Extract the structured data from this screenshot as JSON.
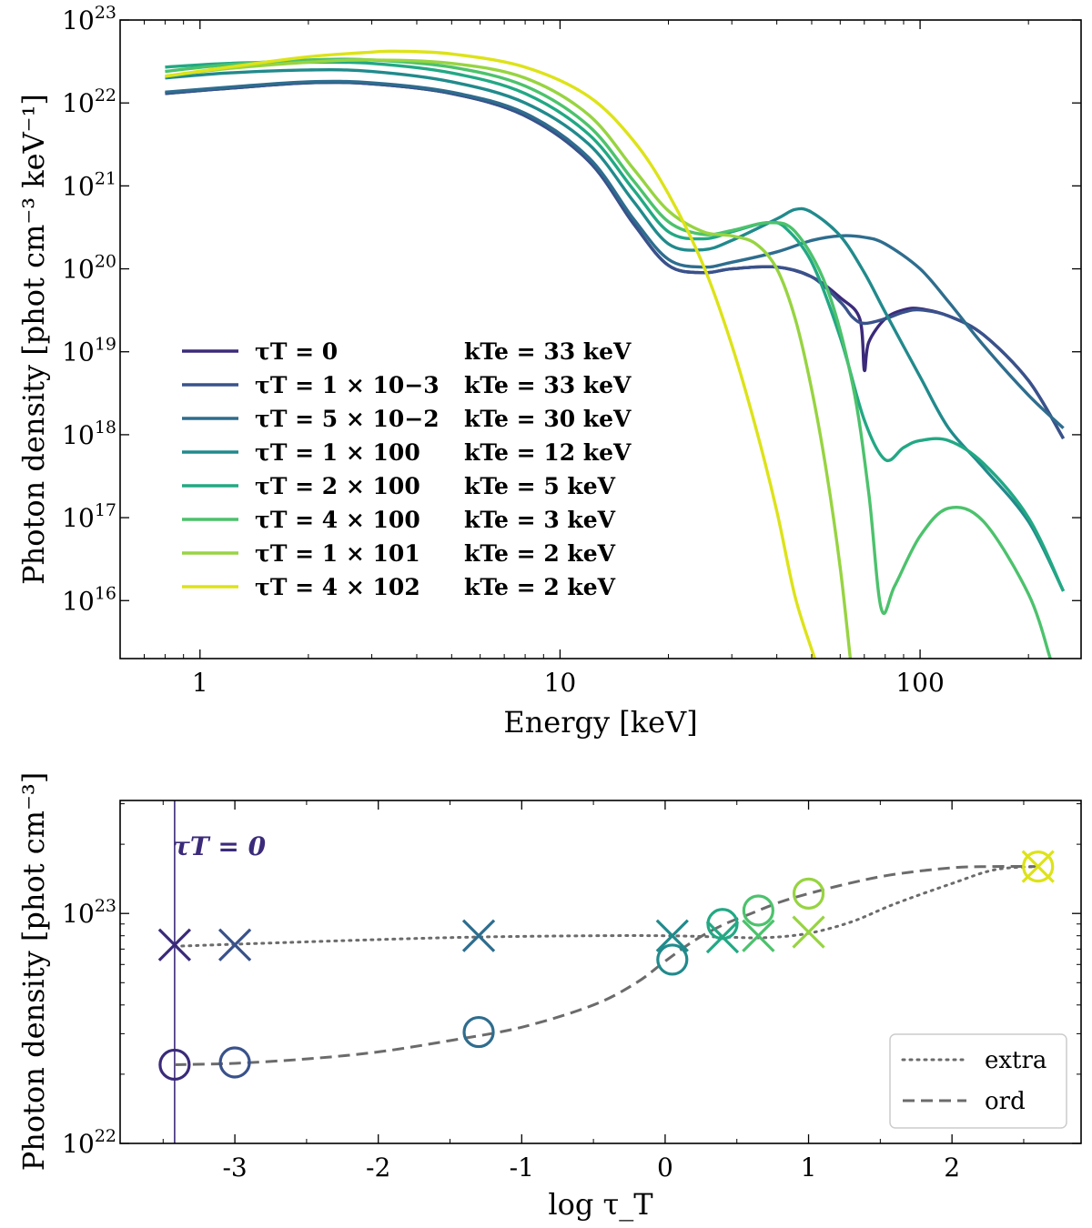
{
  "chart_data": [
    {
      "type": "line",
      "xscale": "log",
      "yscale": "log",
      "xlabel": "Energy [keV]",
      "ylabel": "Photon density [phot cm⁻³ keV⁻¹]",
      "xlim": [
        0.6,
        280
      ],
      "ylim": [
        2000000000000000.0,
        1e+23
      ],
      "xticks": [
        {
          "value": 1,
          "label": "1"
        },
        {
          "value": 10,
          "label": "10"
        },
        {
          "value": 100,
          "label": "100"
        }
      ],
      "yticks": [
        {
          "value": 1e+16,
          "base": "10",
          "exp": "16"
        },
        {
          "value": 1e+17,
          "base": "10",
          "exp": "17"
        },
        {
          "value": 1e+18,
          "base": "10",
          "exp": "18"
        },
        {
          "value": 1e+19,
          "base": "10",
          "exp": "19"
        },
        {
          "value": 1e+20,
          "base": "10",
          "exp": "20"
        },
        {
          "value": 1e+21,
          "base": "10",
          "exp": "21"
        },
        {
          "value": 1e+22,
          "base": "10",
          "exp": "22"
        },
        {
          "value": 1e+23,
          "base": "10",
          "exp": "23"
        }
      ],
      "legend_position": "lower-left",
      "series": [
        {
          "name": "τ_T = 0",
          "tau_label": "τT = 0",
          "kte_label": "kTe = 33 keV",
          "color": "#3b2a7a",
          "x": [
            0.8,
            1.2,
            2,
            3,
            5,
            8,
            12,
            16,
            20,
            25,
            30,
            40,
            50,
            60,
            68,
            70,
            72,
            80,
            90,
            100,
            120,
            150,
            200,
            250
          ],
          "y": [
            1.3e+22,
            1.5e+22,
            1.75e+22,
            1.7e+22,
            1.3e+22,
            7e+21,
            2e+21,
            3.5e+20,
            1.1e+20,
            9e+19,
            1e+20,
            1.05e+20,
            8e+19,
            4.5e+19,
            2.5e+19,
            6e+18,
            1.3e+19,
            2.5e+19,
            3.2e+19,
            3.3e+19,
            2.7e+19,
            1.6e+19,
            4.5e+18,
            9e+17
          ]
        },
        {
          "name": "τ_T = 1×10⁻³",
          "tau_label": "τT = 1 × 10−3",
          "kte_label": "kTe = 33 keV",
          "color": "#39528b",
          "x": [
            0.8,
            1.2,
            2,
            3,
            5,
            8,
            12,
            16,
            20,
            25,
            30,
            40,
            50,
            60,
            65,
            70,
            80,
            90,
            100,
            120,
            150,
            200,
            250
          ],
          "y": [
            1.3e+22,
            1.5e+22,
            1.75e+22,
            1.7e+22,
            1.3e+22,
            7e+21,
            2e+21,
            3.5e+20,
            1.1e+20,
            9e+19,
            1e+20,
            1.05e+20,
            8e+19,
            4e+19,
            2.6e+19,
            2.2e+19,
            2.5e+19,
            3e+19,
            3.2e+19,
            2.7e+19,
            1.6e+19,
            4.5e+18,
            9e+17
          ]
        },
        {
          "name": "τ_T = 5×10⁻²",
          "tau_label": "τT = 5 × 10−2",
          "kte_label": "kTe = 30 keV",
          "color": "#2e6d8e",
          "x": [
            0.8,
            1.2,
            2,
            3,
            5,
            8,
            12,
            16,
            20,
            25,
            30,
            40,
            50,
            60,
            70,
            80,
            100,
            120,
            150,
            200,
            250
          ],
          "y": [
            1.35e+22,
            1.55e+22,
            1.8e+22,
            1.75e+22,
            1.35e+22,
            7.5e+21,
            2.2e+21,
            4e+20,
            1.3e+20,
            1.05e+20,
            1.2e+20,
            1.6e+20,
            2.2e+20,
            2.5e+20,
            2.4e+20,
            2e+20,
            1e+20,
            4e+19,
            1.2e+19,
            3e+18,
            1.2e+18
          ]
        },
        {
          "name": "τ_T = 1×10⁰",
          "tau_label": "τT = 1 × 100",
          "kte_label": "kTe = 12 keV",
          "color": "#218a8c",
          "x": [
            0.8,
            1.2,
            2,
            3,
            5,
            8,
            12,
            16,
            20,
            25,
            30,
            40,
            45,
            50,
            60,
            70,
            80,
            100,
            120,
            150,
            200,
            250
          ],
          "y": [
            2e+22,
            2.3e+22,
            2.5e+22,
            2.4e+22,
            1.8e+22,
            1e+22,
            3.2e+21,
            6.5e+20,
            2e+20,
            1.7e+20,
            2.2e+20,
            4e+20,
            5.2e+20,
            4.8e+20,
            2.5e+20,
            9e+19,
            3e+19,
            5e+18,
            1.2e+18,
            4e+17,
            9e+16,
            1.3e+16
          ]
        },
        {
          "name": "τ_T = 2×10⁰",
          "tau_label": "τT = 2 × 100",
          "kte_label": "kTe = 5 keV",
          "color": "#22a884",
          "x": [
            0.8,
            1.2,
            2,
            3,
            5,
            8,
            12,
            16,
            20,
            25,
            30,
            35,
            38,
            42,
            50,
            60,
            70,
            80,
            90,
            100,
            120,
            150,
            200,
            250
          ],
          "y": [
            2.7e+22,
            3e+22,
            3.1e+22,
            3e+22,
            2.3e+22,
            1.3e+22,
            4.2e+21,
            9e+20,
            2.8e+20,
            2.3e+20,
            2.8e+20,
            3.4e+20,
            3.6e+20,
            3.2e+20,
            1.2e+20,
            1.5e+19,
            1.5e+18,
            5e+17,
            7e+17,
            8.5e+17,
            8.5e+17,
            4.5e+17,
            1e+17,
            1.3e+16
          ]
        },
        {
          "name": "τ_T = 4×10⁰",
          "tau_label": "τT = 4 × 100",
          "kte_label": "kTe = 3 keV",
          "color": "#4cc26c",
          "x": [
            0.8,
            1.2,
            2,
            3,
            5,
            8,
            12,
            16,
            20,
            25,
            30,
            38,
            45,
            55,
            65,
            72,
            78,
            85,
            100,
            120,
            150,
            200,
            230
          ],
          "y": [
            2.4e+22,
            2.9e+22,
            3.3e+22,
            3.3e+22,
            2.7e+22,
            1.6e+22,
            5.3e+21,
            1.15e+21,
            3.7e+20,
            2.6e+20,
            2.9e+20,
            3.6e+20,
            2.8e+20,
            6e+19,
            4e+18,
            2e+17,
            8000000000000000.0,
            1.5e+16,
            6e+16,
            1.3e+17,
            9e+16,
            1.2e+16,
            2000000000000000.0
          ]
        },
        {
          "name": "τ_T = 1×10¹",
          "tau_label": "τT = 1 × 101",
          "kte_label": "kTe = 2 keV",
          "color": "#97d441",
          "x": [
            0.8,
            1.2,
            2,
            3,
            5,
            8,
            12,
            16,
            20,
            25,
            30,
            35,
            40,
            45,
            50,
            55,
            60,
            64
          ],
          "y": [
            2.1e+22,
            2.6e+22,
            3.1e+22,
            3.3e+22,
            3e+22,
            2e+22,
            7.2e+21,
            1.6e+21,
            5e+20,
            2.8e+20,
            2.5e+20,
            2e+20,
            1e+20,
            2.5e+19,
            3.5e+18,
            3.5e+17,
            2.5e+16,
            2000000000000000.0
          ]
        },
        {
          "name": "τ_T = 4×10²",
          "tau_label": "τT = 4 × 102",
          "kte_label": "kTe = 2 keV",
          "color": "#dde318",
          "x": [
            0.8,
            1.2,
            2,
            3,
            3.5,
            5,
            8,
            12,
            16,
            20,
            25,
            30,
            35,
            40,
            45,
            51
          ],
          "y": [
            2.1e+22,
            2.7e+22,
            3.6e+22,
            4.1e+22,
            4.2e+22,
            3.9e+22,
            2.7e+22,
            1.2e+22,
            3.5e+21,
            8e+20,
            1.1e+20,
            1.2e+19,
            1.2e+18,
            1.2e+17,
            1.1e+16,
            2000000000000000.0
          ]
        }
      ]
    },
    {
      "type": "scatter",
      "yscale": "log",
      "xlabel": "log τ_T",
      "ylabel": "Photon density [phot cm⁻³]",
      "xlim": [
        -3.8,
        2.9
      ],
      "ylim": [
        1e+22,
        3.1e+23
      ],
      "xticks": [
        {
          "value": -3,
          "label": "-3"
        },
        {
          "value": -2,
          "label": "-2"
        },
        {
          "value": -1,
          "label": "-1"
        },
        {
          "value": 0,
          "label": "0"
        },
        {
          "value": 1,
          "label": "1"
        },
        {
          "value": 2,
          "label": "2"
        }
      ],
      "yticks": [
        {
          "value": 1e+22,
          "base": "10",
          "exp": "22"
        },
        {
          "value": 1e+23,
          "base": "10",
          "exp": "23"
        }
      ],
      "vline": {
        "x": -3.42,
        "label": "τT = 0",
        "color": "#3b2a7a"
      },
      "legend_position": "bottom-right",
      "legend": [
        {
          "label": "extra",
          "style": "dotted"
        },
        {
          "label": "ord",
          "style": "dashed"
        }
      ],
      "points": [
        {
          "logtau": -3.42,
          "extra": 7.3e+22,
          "ord": 2.2e+22,
          "color": "#3b2a7a"
        },
        {
          "logtau": -3.0,
          "extra": 7.3e+22,
          "ord": 2.25e+22,
          "color": "#39528b"
        },
        {
          "logtau": -1.3,
          "extra": 8e+22,
          "ord": 3.05e+22,
          "color": "#2e6d8e"
        },
        {
          "logtau": 0.05,
          "extra": 8e+22,
          "ord": 6.3e+22,
          "color": "#218a8c"
        },
        {
          "logtau": 0.4,
          "extra": 7.9e+22,
          "ord": 9e+22,
          "color": "#22a884"
        },
        {
          "logtau": 0.65,
          "extra": 8e+22,
          "ord": 1.03e+23,
          "color": "#4cc26c"
        },
        {
          "logtau": 1.0,
          "extra": 8.3e+22,
          "ord": 1.22e+23,
          "color": "#97d441"
        },
        {
          "logtau": 2.6,
          "extra": 1.6e+23,
          "ord": 1.6e+23,
          "color": "#dde318"
        }
      ],
      "extra_curve": {
        "x": [
          -3.42,
          -3.0,
          -2.0,
          -1.3,
          -0.5,
          0.0,
          0.4,
          0.7,
          1.0,
          1.3,
          1.6,
          2.0,
          2.3,
          2.6
        ],
        "y": [
          7.2e+22,
          7.35e+22,
          7.7e+22,
          7.9e+22,
          8e+22,
          8e+22,
          7.9e+22,
          7.85e+22,
          8.2e+22,
          9.2e+22,
          1.1e+23,
          1.35e+23,
          1.55e+23,
          1.6e+23
        ]
      },
      "ord_curve": {
        "x": [
          -3.42,
          -3.0,
          -2.5,
          -2.0,
          -1.5,
          -1.0,
          -0.5,
          -0.2,
          0.0,
          0.2,
          0.4,
          0.6,
          0.8,
          1.0,
          1.3,
          1.6,
          2.0,
          2.3,
          2.6
        ],
        "y": [
          2.2e+22,
          2.23e+22,
          2.33e+22,
          2.5e+22,
          2.8e+22,
          3.2e+22,
          4e+22,
          5e+22,
          6.2e+22,
          7.6e+22,
          8.9e+22,
          1e+23,
          1.12e+23,
          1.22e+23,
          1.36e+23,
          1.48e+23,
          1.58e+23,
          1.6e+23,
          1.6e+23
        ]
      }
    }
  ]
}
